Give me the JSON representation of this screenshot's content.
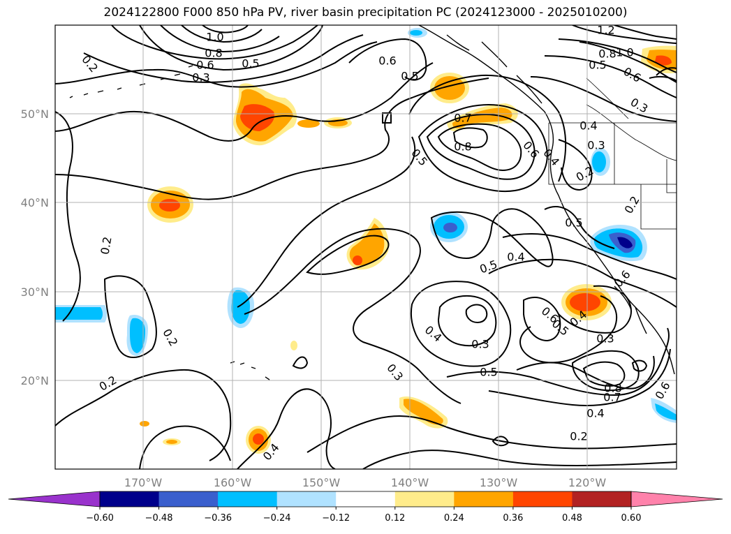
{
  "title": "2024122800 F000 850 hPa PV, river basin precipitation PC (2024123000 - 2025010200)",
  "map": {
    "lat_labels": [
      "50°N",
      "40°N",
      "30°N",
      "20°N"
    ],
    "lon_labels": [
      "170°W",
      "160°W",
      "150°W",
      "140°W",
      "130°W",
      "120°W"
    ],
    "contour_labels": [
      "1.0",
      "0.8",
      "0.6",
      "0.5",
      "0.3",
      "0.6",
      "0.5",
      "1.2",
      "0.8",
      "1.0",
      "0.5",
      "0.6",
      "0.3",
      "0.4",
      "0.3",
      "0.2",
      "0.7",
      "0.8",
      "0.5",
      "0.6",
      "0.4",
      "0.2",
      "0.5",
      "0.4",
      "0.5",
      "0.6",
      "0.5",
      "0.4",
      "0.3",
      "0.6",
      "0.2",
      "0.2",
      "0.2",
      "0.3",
      "0.4",
      "0.3",
      "0.5",
      "0.8",
      "0.7",
      "0.4",
      "0.2",
      "0.2",
      "0.4",
      "0.6"
    ],
    "colors": {
      "grid": "#b0b0b0",
      "contour": "#000000"
    }
  },
  "colorbar": {
    "ticks": [
      "−0.60",
      "−0.48",
      "−0.36",
      "−0.24",
      "−0.12",
      "0.12",
      "0.24",
      "0.36",
      "0.48",
      "0.60"
    ],
    "colors": [
      "#9932cc",
      "#00008b",
      "#3a5fcd",
      "#00bfff",
      "#b0e2ff",
      "#ffffff",
      "#ffec8b",
      "#ffa500",
      "#ff4500",
      "#b22222",
      "#ff82ab"
    ]
  }
}
